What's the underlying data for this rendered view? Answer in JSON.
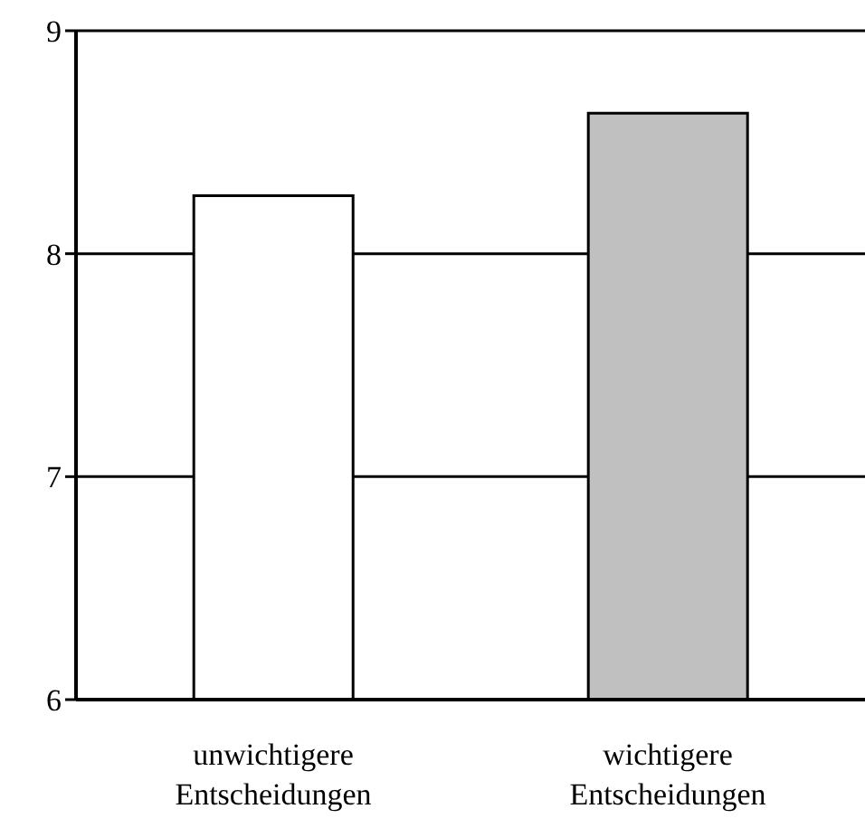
{
  "chart_data": {
    "type": "bar",
    "categories": [
      "unwichtigere Entscheidungen",
      "wichtigere Entscheidungen"
    ],
    "values": [
      8.26,
      8.63
    ],
    "colors": [
      "#ffffff",
      "#c0c0c0"
    ],
    "ylim": [
      6,
      9
    ],
    "yticks": [
      6,
      7,
      8,
      9
    ],
    "grid": "y"
  }
}
